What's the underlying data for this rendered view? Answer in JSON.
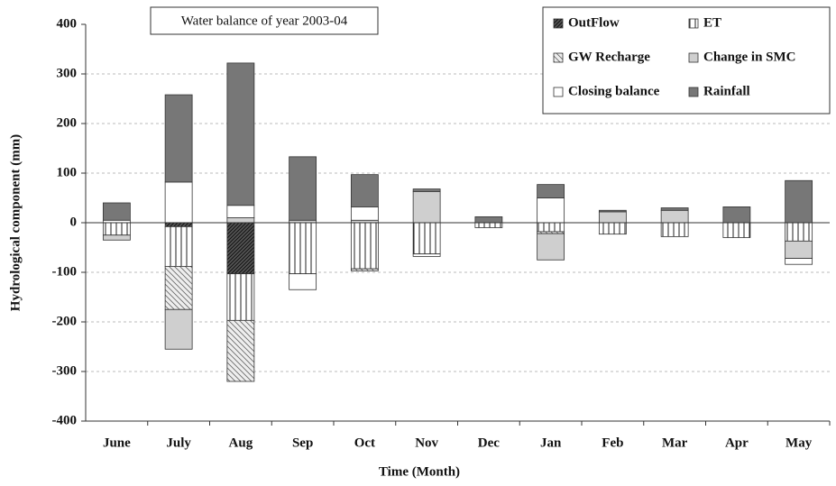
{
  "chart_data": {
    "type": "bar",
    "title": "Water balance of year 2003-04",
    "x_label": "Time (Month)",
    "y_label": "Hydrological component (mm)",
    "categories": [
      "June",
      "July",
      "Aug",
      "Sep",
      "Oct",
      "Nov",
      "Dec",
      "Jan",
      "Feb",
      "Mar",
      "Apr",
      "May"
    ],
    "stacked": true,
    "grid": true,
    "ylim": [
      -400,
      400
    ],
    "yticks": [
      -400,
      -300,
      -200,
      -100,
      0,
      100,
      200,
      300,
      400
    ],
    "series": [
      {
        "name": "OutFlow",
        "color": "#555555",
        "hatch": "diagonal-dense",
        "values": [
          null,
          -8,
          -103,
          null,
          null,
          null,
          null,
          null,
          null,
          null,
          null,
          null
        ]
      },
      {
        "name": "ET",
        "color": "#ffffff",
        "hatch": "vertical",
        "values": [
          -25,
          -80,
          -94,
          -103,
          -93,
          -63,
          -10,
          -18,
          -23,
          -28,
          -30,
          -37
        ]
      },
      {
        "name": "GW Recharge",
        "color": "#eeeeee",
        "hatch": "diagonal-light",
        "values": [
          null,
          -87,
          -123,
          null,
          -4,
          null,
          null,
          -4,
          null,
          null,
          null,
          null
        ]
      },
      {
        "name": "Change in SMC",
        "color": "#cfcfcf",
        "hatch": "none",
        "values": [
          -10,
          -80,
          10,
          5,
          5,
          63,
          null,
          -53,
          22,
          25,
          null,
          -35
        ]
      },
      {
        "name": "Closing balance",
        "color": "#ffffff",
        "hatch": "none",
        "values": [
          5,
          82,
          25,
          -32,
          27,
          -5,
          null,
          50,
          null,
          null,
          null,
          -12
        ]
      },
      {
        "name": "Rainfall",
        "color": "#777777",
        "hatch": "none",
        "values": [
          35,
          176,
          287,
          128,
          65,
          5,
          12,
          27,
          3,
          5,
          32,
          85
        ]
      }
    ]
  }
}
